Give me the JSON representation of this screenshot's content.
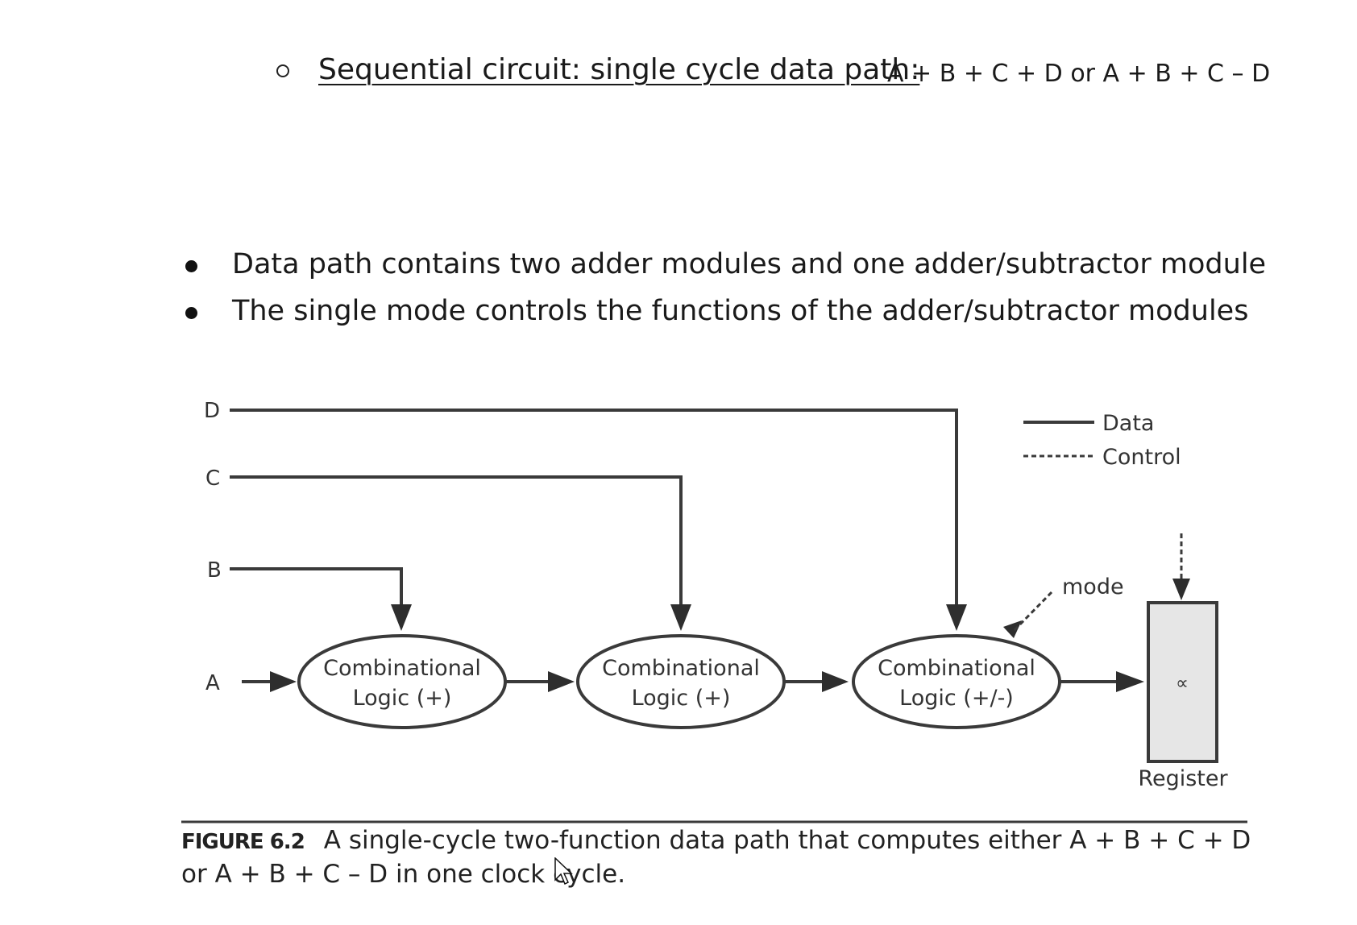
{
  "heading": {
    "title": "Sequential circuit: single cycle data path:",
    "formula": "A + B + C + D or A + B + C – D"
  },
  "bullets": [
    "Data path contains two adder modules and one adder/subtractor module",
    "The single mode controls the functions of the adder/subtractor modules"
  ],
  "diagram": {
    "inputs": [
      "D",
      "C",
      "B",
      "A"
    ],
    "blocks": [
      {
        "line1": "Combinational",
        "line2": "Logic (+)"
      },
      {
        "line1": "Combinational",
        "line2": "Logic (+)"
      },
      {
        "line1": "Combinational",
        "line2": "Logic (+/-)"
      }
    ],
    "legend": {
      "data": "Data",
      "control": "Control"
    },
    "mode_label": "mode",
    "register_label": "Register",
    "register_symbol": "∝"
  },
  "caption": {
    "figure": "FIGURE 6.2",
    "text": "A single-cycle two-function data path that computes either A + B + C + D or A + B + C – D in one clock cycle."
  },
  "colors": {
    "line": "#3a3a3a",
    "register_fill": "#e6e6e6"
  }
}
